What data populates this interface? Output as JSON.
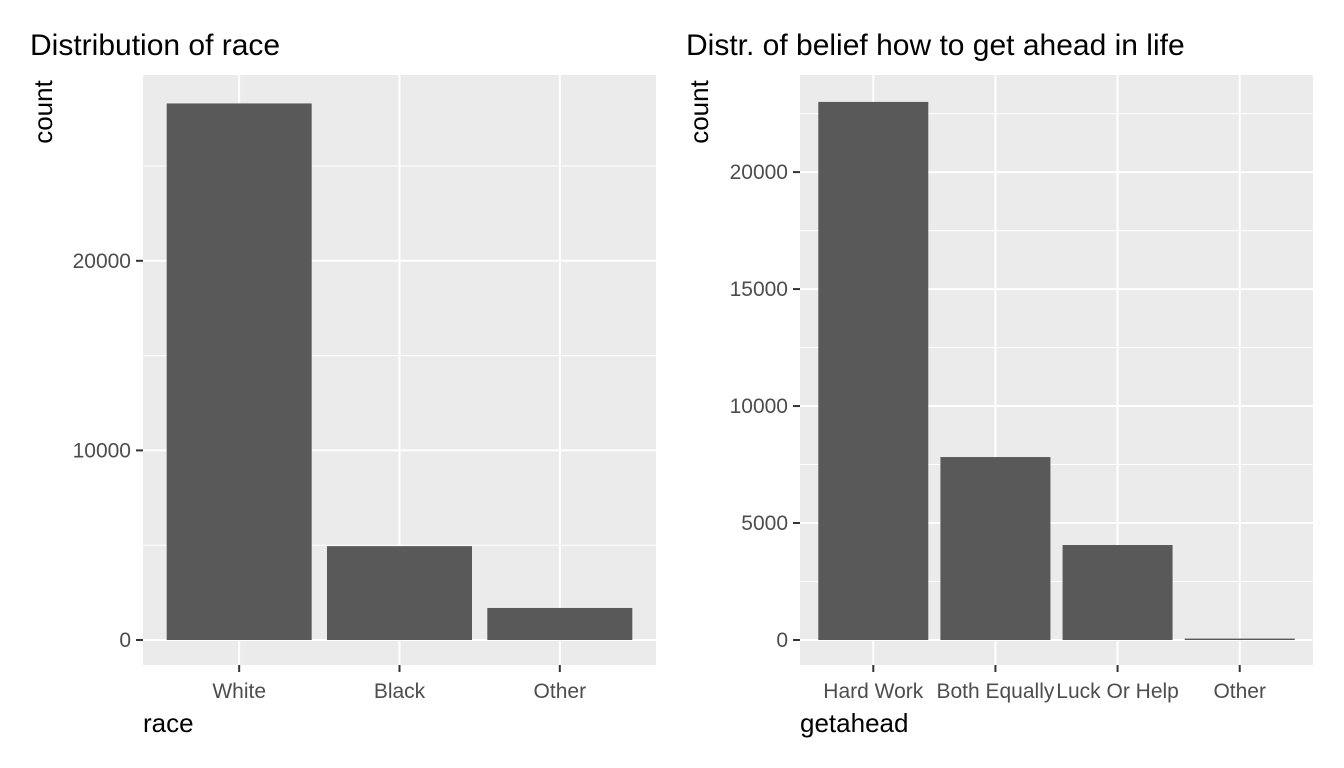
{
  "chart_data": [
    {
      "type": "bar",
      "title": "Distribution of race",
      "xlabel": "race",
      "ylabel": "count",
      "categories": [
        "White",
        "Black",
        "Other"
      ],
      "values": [
        28300,
        4950,
        1690
      ],
      "ylim": [
        0,
        29800
      ],
      "yticks": [
        0,
        10000,
        20000
      ],
      "yticks_labels": [
        "0",
        "10000",
        "20000"
      ],
      "grid": true,
      "bar_color": "#595959",
      "panel_color": "#ebebeb"
    },
    {
      "type": "bar",
      "title": "Distr. of belief how to get ahead in life",
      "xlabel": "getahead",
      "ylabel": "count",
      "categories": [
        "Hard Work",
        "Both Equally",
        "Luck Or Help",
        "Other"
      ],
      "values": [
        23000,
        7820,
        4060,
        60
      ],
      "ylim": [
        0,
        24150
      ],
      "yticks": [
        0,
        5000,
        10000,
        15000,
        20000
      ],
      "yticks_labels": [
        "0",
        "5000",
        "10000",
        "15000",
        "20000"
      ],
      "grid": true,
      "bar_color": "#595959",
      "panel_color": "#ebebeb"
    }
  ]
}
